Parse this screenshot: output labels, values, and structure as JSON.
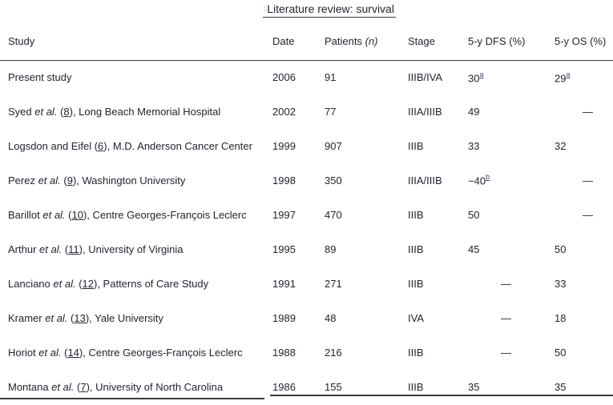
{
  "title": {
    "prefix": ":",
    "text": "Literature review: survival"
  },
  "columns": {
    "study": "Study",
    "date": "Date",
    "patients": "Patients",
    "patients_n": "(n)",
    "stage": "Stage",
    "dfs": "5-y DFS (%)",
    "os": "5-y OS (%)"
  },
  "rows": [
    {
      "study": [
        {
          "t": "Present study",
          "s": "p"
        }
      ],
      "date": "2006",
      "patients": "91",
      "stage": "IIIB/IVA",
      "dfs": {
        "t": "30",
        "sup": "a"
      },
      "os": {
        "t": "29",
        "sup": "a"
      }
    },
    {
      "study": [
        {
          "t": "Syed ",
          "s": "p"
        },
        {
          "t": "et al.",
          "s": "i"
        },
        {
          "t": " (",
          "s": "p"
        },
        {
          "t": "8",
          "s": "r"
        },
        {
          "t": "), Long Beach Memorial Hospital",
          "s": "p"
        }
      ],
      "date": "2002",
      "patients": "77",
      "stage": "IIIA/IIIB",
      "dfs": {
        "t": "49"
      },
      "os": {
        "t": "—",
        "dash": true
      }
    },
    {
      "study": [
        {
          "t": "Logsdon and Eifel (",
          "s": "p"
        },
        {
          "t": "6",
          "s": "r"
        },
        {
          "t": "), M.D. Anderson Cancer Center",
          "s": "p"
        }
      ],
      "date": "1999",
      "patients": "907",
      "stage": "IIIB",
      "dfs": {
        "t": "33"
      },
      "os": {
        "t": "32"
      }
    },
    {
      "study": [
        {
          "t": "Perez ",
          "s": "p"
        },
        {
          "t": "et al.",
          "s": "i"
        },
        {
          "t": " (",
          "s": "p"
        },
        {
          "t": "9",
          "s": "r"
        },
        {
          "t": "), Washington University",
          "s": "p"
        }
      ],
      "date": "1998",
      "patients": "350",
      "stage": "IIIA/IIIB",
      "dfs": {
        "t": "~40",
        "sup": "b"
      },
      "os": {
        "t": "—",
        "dash": true
      }
    },
    {
      "study": [
        {
          "t": "Barillot ",
          "s": "p"
        },
        {
          "t": "et al.",
          "s": "i"
        },
        {
          "t": " (",
          "s": "p"
        },
        {
          "t": "10",
          "s": "r"
        },
        {
          "t": "), Centre Georges-François Leclerc",
          "s": "p"
        }
      ],
      "date": "1997",
      "patients": "470",
      "stage": "IIIB",
      "dfs": {
        "t": "50"
      },
      "os": {
        "t": "—",
        "dash": true
      }
    },
    {
      "study": [
        {
          "t": "Arthur ",
          "s": "p"
        },
        {
          "t": "et al.",
          "s": "i"
        },
        {
          "t": " (",
          "s": "p"
        },
        {
          "t": "11",
          "s": "r"
        },
        {
          "t": "), University of Virginia",
          "s": "p"
        }
      ],
      "date": "1995",
      "patients": "89",
      "stage": "IIIB",
      "dfs": {
        "t": "45"
      },
      "os": {
        "t": "50"
      }
    },
    {
      "study": [
        {
          "t": "Lanciano ",
          "s": "p"
        },
        {
          "t": "et al.",
          "s": "i"
        },
        {
          "t": " (",
          "s": "p"
        },
        {
          "t": "12",
          "s": "r"
        },
        {
          "t": "), Patterns of Care Study",
          "s": "p"
        }
      ],
      "date": "1991",
      "patients": "271",
      "stage": "IIIB",
      "dfs": {
        "t": "—",
        "dash": true
      },
      "os": {
        "t": "33"
      }
    },
    {
      "study": [
        {
          "t": "Kramer ",
          "s": "p"
        },
        {
          "t": "et al.",
          "s": "i"
        },
        {
          "t": " (",
          "s": "p"
        },
        {
          "t": "13",
          "s": "r"
        },
        {
          "t": "), Yale University",
          "s": "p"
        }
      ],
      "date": "1989",
      "patients": "48",
      "stage": "IVA",
      "dfs": {
        "t": "—",
        "dash": true
      },
      "os": {
        "t": "18"
      }
    },
    {
      "study": [
        {
          "t": "Horiot ",
          "s": "p"
        },
        {
          "t": "et al.",
          "s": "i"
        },
        {
          "t": " (",
          "s": "p"
        },
        {
          "t": "14",
          "s": "r"
        },
        {
          "t": "), Centre Georges-François Leclerc",
          "s": "p"
        }
      ],
      "date": "1988",
      "patients": "216",
      "stage": "IIIB",
      "dfs": {
        "t": "—",
        "dash": true
      },
      "os": {
        "t": "50"
      }
    },
    {
      "study": [
        {
          "t": "Montana ",
          "s": "p"
        },
        {
          "t": "et al.",
          "s": "i"
        },
        {
          "t": " (",
          "s": "p"
        },
        {
          "t": "7",
          "s": "r"
        },
        {
          "t": "), University of North Carolina",
          "s": "p"
        }
      ],
      "date": "1986",
      "patients": "155",
      "stage": "IIIB",
      "dfs": {
        "t": "35"
      },
      "os": {
        "t": "35"
      }
    }
  ],
  "colors": {
    "text": "#262230",
    "rule": "#3b3b3b",
    "footnote": "#4a3f6b"
  }
}
